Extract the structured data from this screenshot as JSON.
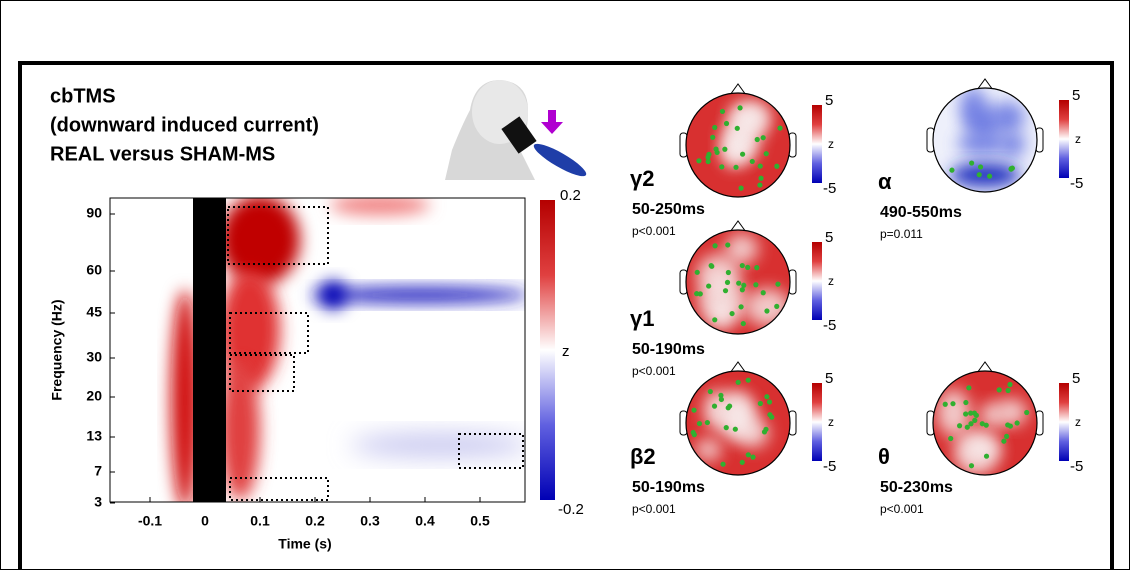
{
  "title_lines": [
    "cbTMS",
    "(downward induced current)",
    "REAL versus SHAM-MS"
  ],
  "tf_map": {
    "xlabel": "Time (s)",
    "ylabel": "Frequency (Hz)",
    "xticks": [
      "-0.1",
      "0",
      "0.1",
      "0.2",
      "0.3",
      "0.4",
      "0.5"
    ],
    "yticks": [
      "90",
      "60",
      "45",
      "30",
      "20",
      "13",
      "7",
      "3"
    ],
    "colorbar": {
      "max": "0.2",
      "label": "z",
      "min": "-0.2"
    }
  },
  "topoplots": [
    {
      "band": "γ2",
      "window": "50-250ms",
      "p": "p<0.001",
      "colorbar": {
        "max": "5",
        "label": "z",
        "min": "-5"
      }
    },
    {
      "band": "γ1",
      "window": "50-190ms",
      "p": "p<0.001",
      "colorbar": {
        "max": "5",
        "label": "z",
        "min": "-5"
      }
    },
    {
      "band": "β2",
      "window": "50-190ms",
      "p": "p<0.001",
      "colorbar": {
        "max": "5",
        "label": "z",
        "min": "-5"
      }
    },
    {
      "band": "α",
      "window": "490-550ms",
      "p": "p=0.011",
      "colorbar": {
        "max": "5",
        "label": "z",
        "min": "-5"
      }
    },
    {
      "band": "θ",
      "window": "50-230ms",
      "p": "p<0.001",
      "colorbar": {
        "max": "5",
        "label": "z",
        "min": "-5"
      }
    }
  ]
}
